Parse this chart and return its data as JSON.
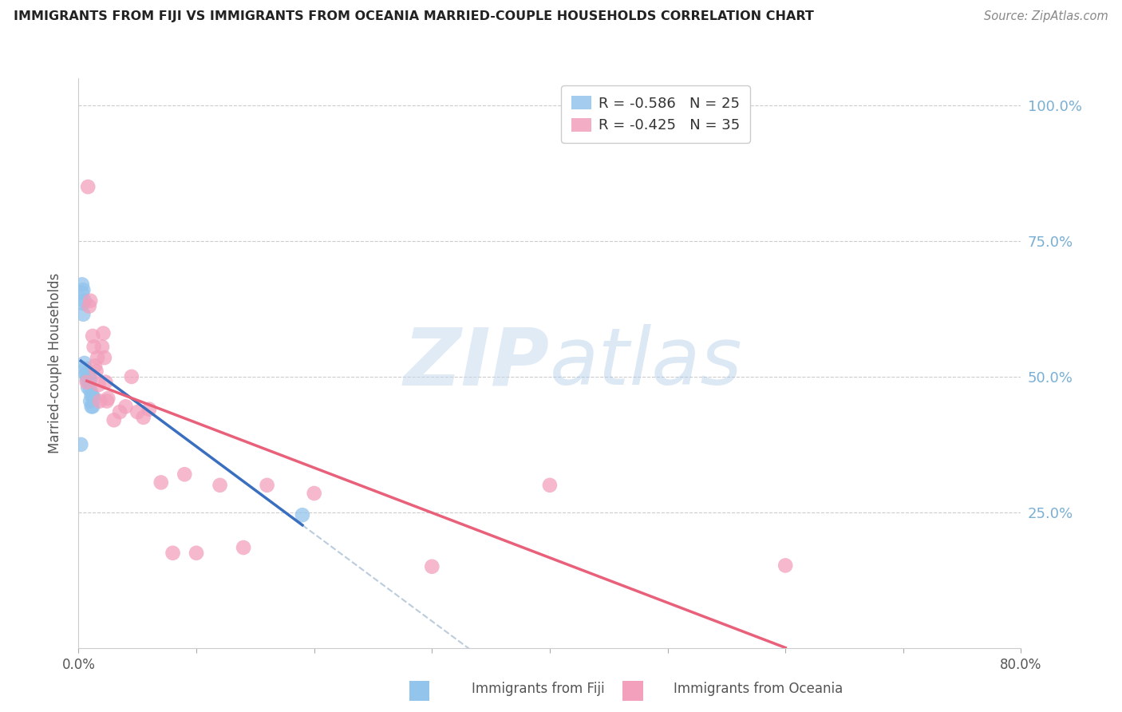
{
  "title": "IMMIGRANTS FROM FIJI VS IMMIGRANTS FROM OCEANIA MARRIED-COUPLE HOUSEHOLDS CORRELATION CHART",
  "source": "Source: ZipAtlas.com",
  "ylabel": "Married-couple Households",
  "fiji_R": -0.586,
  "fiji_N": 25,
  "oceania_R": -0.425,
  "oceania_N": 35,
  "fiji_color": "#93C4EC",
  "oceania_color": "#F2A0BC",
  "fiji_line_color": "#3A6FBF",
  "oceania_line_color": "#E8607A",
  "dashed_line_color": "#BBCCDD",
  "xlim": [
    0.0,
    0.8
  ],
  "ylim": [
    0.0,
    1.05
  ],
  "fiji_scatter_x": [
    0.002,
    0.003,
    0.004,
    0.004,
    0.005,
    0.006,
    0.006,
    0.007,
    0.007,
    0.008,
    0.008,
    0.009,
    0.009,
    0.01,
    0.01,
    0.01,
    0.011,
    0.011,
    0.012,
    0.012,
    0.013,
    0.003,
    0.004,
    0.005,
    0.19
  ],
  "fiji_scatter_y": [
    0.375,
    0.655,
    0.635,
    0.615,
    0.525,
    0.515,
    0.505,
    0.505,
    0.495,
    0.5,
    0.48,
    0.5,
    0.49,
    0.495,
    0.475,
    0.455,
    0.465,
    0.445,
    0.465,
    0.445,
    0.46,
    0.67,
    0.66,
    0.64,
    0.245
  ],
  "oceania_scatter_x": [
    0.007,
    0.009,
    0.01,
    0.012,
    0.013,
    0.014,
    0.015,
    0.016,
    0.017,
    0.018,
    0.02,
    0.021,
    0.022,
    0.023,
    0.024,
    0.025,
    0.03,
    0.035,
    0.04,
    0.045,
    0.05,
    0.055,
    0.06,
    0.07,
    0.08,
    0.09,
    0.1,
    0.12,
    0.14,
    0.16,
    0.2,
    0.3,
    0.4,
    0.6,
    0.008
  ],
  "oceania_scatter_y": [
    0.49,
    0.63,
    0.64,
    0.575,
    0.555,
    0.52,
    0.51,
    0.535,
    0.485,
    0.455,
    0.555,
    0.58,
    0.535,
    0.49,
    0.455,
    0.46,
    0.42,
    0.435,
    0.445,
    0.5,
    0.435,
    0.425,
    0.44,
    0.305,
    0.175,
    0.32,
    0.175,
    0.3,
    0.185,
    0.3,
    0.285,
    0.15,
    0.3,
    0.152,
    0.85
  ],
  "watermark_zip": "ZIP",
  "watermark_atlas": "atlas",
  "background_color": "#FFFFFF",
  "grid_color": "#CCCCCC",
  "right_tick_color": "#7AAFD4",
  "bottom_legend_fiji": "Immigrants from Fiji",
  "bottom_legend_oceania": "Immigrants from Oceania"
}
